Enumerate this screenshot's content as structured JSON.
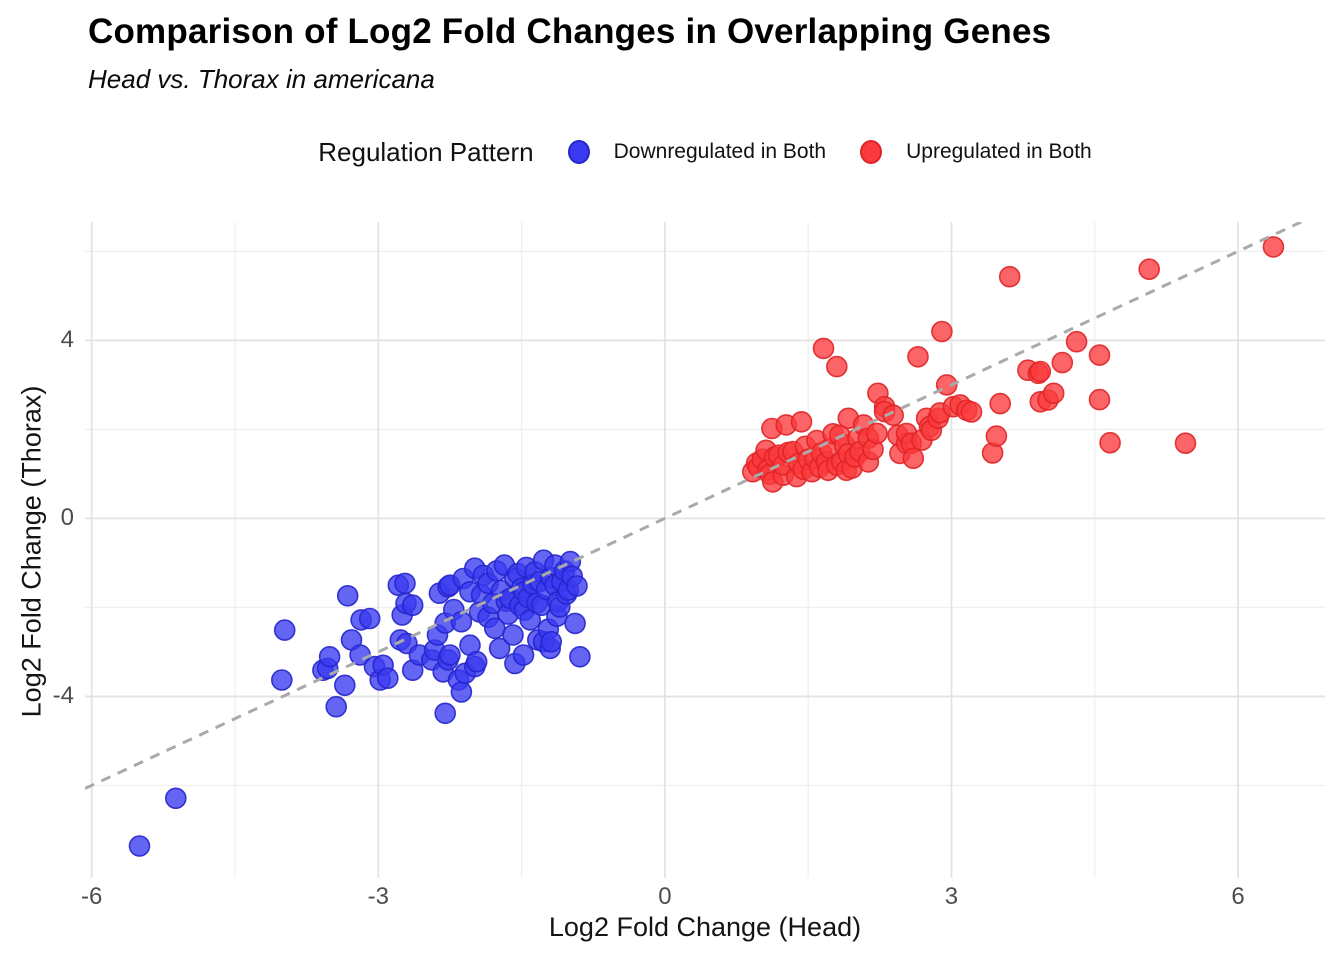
{
  "title": "Comparison of Log2 Fold Changes in Overlapping Genes",
  "subtitle": "Head vs. Thorax in americana",
  "legend": {
    "title": "Regulation Pattern",
    "items": [
      {
        "label": "Downregulated in Both",
        "fill": "#3A3AF0",
        "stroke": "#2525CE"
      },
      {
        "label": "Upregulated in Both",
        "fill": "#FA3A3C",
        "stroke": "#E02426"
      }
    ]
  },
  "axes": {
    "xlabel": "Log2 Fold Change (Head)",
    "ylabel": "Log2 Fold Change (Thorax)",
    "x_tick_labels": [
      "-6",
      "-3",
      "0",
      "3",
      "6"
    ],
    "y_tick_labels": [
      "4",
      "0",
      "-4"
    ]
  },
  "colors": {
    "background": "#ffffff",
    "grid_major": "#e3e3e3",
    "grid_minor": "#efefef",
    "identity_line": "#aaaaaa",
    "tick_text": "#4d4d4d",
    "blue_fill": "#3A3AF0",
    "blue_stroke": "#2525CE",
    "red_fill": "#FA3A3C",
    "red_stroke": "#E02426"
  },
  "chart_data": {
    "type": "scatter",
    "title": "Comparison of Log2 Fold Changes in Overlapping Genes",
    "subtitle": "Head vs. Thorax in americana",
    "xlabel": "Log2 Fold Change (Head)",
    "ylabel": "Log2 Fold Change (Thorax)",
    "xlim": [
      -6.07,
      6.91
    ],
    "ylim": [
      -8.08,
      6.66
    ],
    "x_major_ticks": [
      -6,
      -3,
      0,
      3,
      6
    ],
    "x_minor_ticks": [
      -4.5,
      -1.5,
      1.5,
      4.5
    ],
    "y_major_ticks": [
      -4,
      0,
      4
    ],
    "y_minor_ticks": [
      -6,
      -2,
      2,
      6
    ],
    "grid": true,
    "legend_position": "top",
    "identity_line": {
      "equation": "y = x",
      "style": "dashed",
      "color": "#aaaaaa"
    },
    "point_radius_px": 10,
    "series": [
      {
        "name": "Downregulated in Both",
        "fill": "#3A3AF0",
        "stroke": "#2525CE",
        "points": [
          [
            -5.5,
            -7.36
          ],
          [
            -5.12,
            -6.29
          ],
          [
            -4.01,
            -3.63
          ],
          [
            -3.98,
            -2.51
          ],
          [
            -3.58,
            -3.41
          ],
          [
            -3.53,
            -3.37
          ],
          [
            -3.51,
            -3.11
          ],
          [
            -3.44,
            -4.23
          ],
          [
            -3.35,
            -3.75
          ],
          [
            -3.32,
            -1.74
          ],
          [
            -3.28,
            -2.73
          ],
          [
            -3.19,
            -3.07
          ],
          [
            -3.18,
            -2.28
          ],
          [
            -3.09,
            -2.25
          ],
          [
            -3.04,
            -3.33
          ],
          [
            -2.98,
            -3.63
          ],
          [
            -2.95,
            -3.3
          ],
          [
            -2.9,
            -3.59
          ],
          [
            -2.79,
            -1.5
          ],
          [
            -2.77,
            -2.73
          ],
          [
            -2.75,
            -2.17
          ],
          [
            -2.72,
            -1.46
          ],
          [
            -2.71,
            -1.91
          ],
          [
            -2.7,
            -2.81
          ],
          [
            -2.64,
            -1.95
          ],
          [
            -2.64,
            -3.41
          ],
          [
            -2.57,
            -3.07
          ],
          [
            -2.44,
            -3.18
          ],
          [
            -2.41,
            -2.96
          ],
          [
            -2.38,
            -2.62
          ],
          [
            -2.36,
            -1.68
          ],
          [
            -2.32,
            -3.45
          ],
          [
            -2.3,
            -4.38
          ],
          [
            -2.3,
            -2.35
          ],
          [
            -2.27,
            -1.54
          ],
          [
            -2.27,
            -3.18
          ],
          [
            -2.25,
            -3.07
          ],
          [
            -2.25,
            -1.5
          ],
          [
            -2.21,
            -2.05
          ],
          [
            -2.16,
            -3.63
          ],
          [
            -2.13,
            -2.32
          ],
          [
            -2.13,
            -3.9
          ],
          [
            -2.11,
            -1.35
          ],
          [
            -2.09,
            -3.48
          ],
          [
            -2.04,
            -1.65
          ],
          [
            -2.04,
            -2.85
          ],
          [
            -1.99,
            -1.12
          ],
          [
            -1.99,
            -3.33
          ],
          [
            -1.97,
            -3.22
          ],
          [
            -1.94,
            -2.1
          ],
          [
            -1.92,
            -1.72
          ],
          [
            -1.9,
            -1.28
          ],
          [
            -1.85,
            -1.46
          ],
          [
            -1.85,
            -2.22
          ],
          [
            -1.8,
            -1.91
          ],
          [
            -1.78,
            -2.47
          ],
          [
            -1.76,
            -1.18
          ],
          [
            -1.73,
            -2.92
          ],
          [
            -1.71,
            -1.62
          ],
          [
            -1.68,
            -1.05
          ],
          [
            -1.66,
            -1.86
          ],
          [
            -1.64,
            -2.15
          ],
          [
            -1.62,
            -1.8
          ],
          [
            -1.59,
            -2.62
          ],
          [
            -1.57,
            -3.26
          ],
          [
            -1.57,
            -1.35
          ],
          [
            -1.54,
            -1.24
          ],
          [
            -1.52,
            -1.95
          ],
          [
            -1.5,
            -1.57
          ],
          [
            -1.48,
            -3.07
          ],
          [
            -1.47,
            -1.65
          ],
          [
            -1.47,
            -2.06
          ],
          [
            -1.45,
            -1.1
          ],
          [
            -1.43,
            -1.78
          ],
          [
            -1.41,
            -2.28
          ],
          [
            -1.38,
            -1.48
          ],
          [
            -1.36,
            -1.2
          ],
          [
            -1.34,
            -1.9
          ],
          [
            -1.33,
            -2.73
          ],
          [
            -1.31,
            -1.42
          ],
          [
            -1.29,
            -1.95
          ],
          [
            -1.27,
            -0.94
          ],
          [
            -1.27,
            -2.77
          ],
          [
            -1.24,
            -1.6
          ],
          [
            -1.22,
            -2.49
          ],
          [
            -1.2,
            -2.92
          ],
          [
            -1.19,
            -1.33
          ],
          [
            -1.19,
            -2.77
          ],
          [
            -1.15,
            -1.05
          ],
          [
            -1.15,
            -1.5
          ],
          [
            -1.13,
            -2.2
          ],
          [
            -1.12,
            -1.87
          ],
          [
            -1.1,
            -1.99
          ],
          [
            -1.08,
            -1.42
          ],
          [
            -1.05,
            -1.18
          ],
          [
            -1.03,
            -1.7
          ],
          [
            -1.01,
            -1.61
          ],
          [
            -0.99,
            -0.97
          ],
          [
            -0.97,
            -1.3
          ],
          [
            -0.94,
            -2.36
          ],
          [
            -0.92,
            -1.52
          ],
          [
            -0.89,
            -3.11
          ]
        ]
      },
      {
        "name": "Upregulated in Both",
        "fill": "#FA3A3C",
        "stroke": "#E02426",
        "points": [
          [
            0.92,
            1.05
          ],
          [
            0.96,
            1.24
          ],
          [
            0.98,
            1.15
          ],
          [
            1.02,
            1.33
          ],
          [
            1.06,
            1.53
          ],
          [
            1.08,
            1.1
          ],
          [
            1.1,
            0.99
          ],
          [
            1.13,
            0.82
          ],
          [
            1.12,
            2.02
          ],
          [
            1.15,
            1.38
          ],
          [
            1.19,
            1.42
          ],
          [
            1.24,
            0.97
          ],
          [
            1.24,
            1.2
          ],
          [
            1.27,
            2.1
          ],
          [
            1.29,
            1.48
          ],
          [
            1.34,
            1.5
          ],
          [
            1.38,
            0.94
          ],
          [
            1.4,
            1.24
          ],
          [
            1.43,
            2.17
          ],
          [
            1.45,
            1.1
          ],
          [
            1.47,
            1.62
          ],
          [
            1.5,
            1.33
          ],
          [
            1.54,
            1.05
          ],
          [
            1.57,
            1.35
          ],
          [
            1.59,
            1.75
          ],
          [
            1.62,
            1.15
          ],
          [
            1.64,
            1.47
          ],
          [
            1.66,
            3.82
          ],
          [
            1.69,
            1.27
          ],
          [
            1.71,
            1.08
          ],
          [
            1.73,
            1.57
          ],
          [
            1.76,
            1.9
          ],
          [
            1.8,
            3.41
          ],
          [
            1.8,
            1.2
          ],
          [
            1.83,
            1.87
          ],
          [
            1.85,
            1.28
          ],
          [
            1.88,
            1.65
          ],
          [
            1.9,
            1.08
          ],
          [
            1.92,
            2.25
          ],
          [
            1.92,
            1.45
          ],
          [
            1.96,
            1.13
          ],
          [
            1.99,
            1.38
          ],
          [
            2.02,
            1.8
          ],
          [
            2.04,
            1.5
          ],
          [
            2.08,
            2.1
          ],
          [
            2.13,
            1.27
          ],
          [
            2.13,
            1.8
          ],
          [
            2.18,
            1.55
          ],
          [
            2.22,
            1.91
          ],
          [
            2.23,
            2.81
          ],
          [
            2.3,
            2.51
          ],
          [
            2.3,
            2.4
          ],
          [
            2.39,
            2.32
          ],
          [
            2.44,
            1.87
          ],
          [
            2.46,
            1.46
          ],
          [
            2.53,
            1.69
          ],
          [
            2.53,
            1.91
          ],
          [
            2.58,
            1.69
          ],
          [
            2.6,
            1.35
          ],
          [
            2.65,
            3.63
          ],
          [
            2.69,
            1.76
          ],
          [
            2.74,
            2.25
          ],
          [
            2.77,
            2.06
          ],
          [
            2.79,
            1.98
          ],
          [
            2.86,
            2.25
          ],
          [
            2.88,
            2.37
          ],
          [
            2.9,
            4.2
          ],
          [
            2.95,
            3.0
          ],
          [
            3.02,
            2.51
          ],
          [
            3.09,
            2.55
          ],
          [
            3.16,
            2.43
          ],
          [
            3.21,
            2.39
          ],
          [
            3.43,
            1.47
          ],
          [
            3.47,
            1.85
          ],
          [
            3.51,
            2.58
          ],
          [
            3.61,
            5.43
          ],
          [
            3.8,
            3.33
          ],
          [
            3.91,
            3.26
          ],
          [
            3.93,
            3.3
          ],
          [
            3.93,
            2.62
          ],
          [
            4.01,
            2.66
          ],
          [
            4.07,
            2.81
          ],
          [
            4.16,
            3.5
          ],
          [
            4.31,
            3.97
          ],
          [
            4.55,
            3.67
          ],
          [
            4.55,
            2.67
          ],
          [
            4.66,
            1.7
          ],
          [
            5.07,
            5.6
          ],
          [
            5.45,
            1.69
          ],
          [
            6.37,
            6.1
          ]
        ]
      }
    ]
  }
}
